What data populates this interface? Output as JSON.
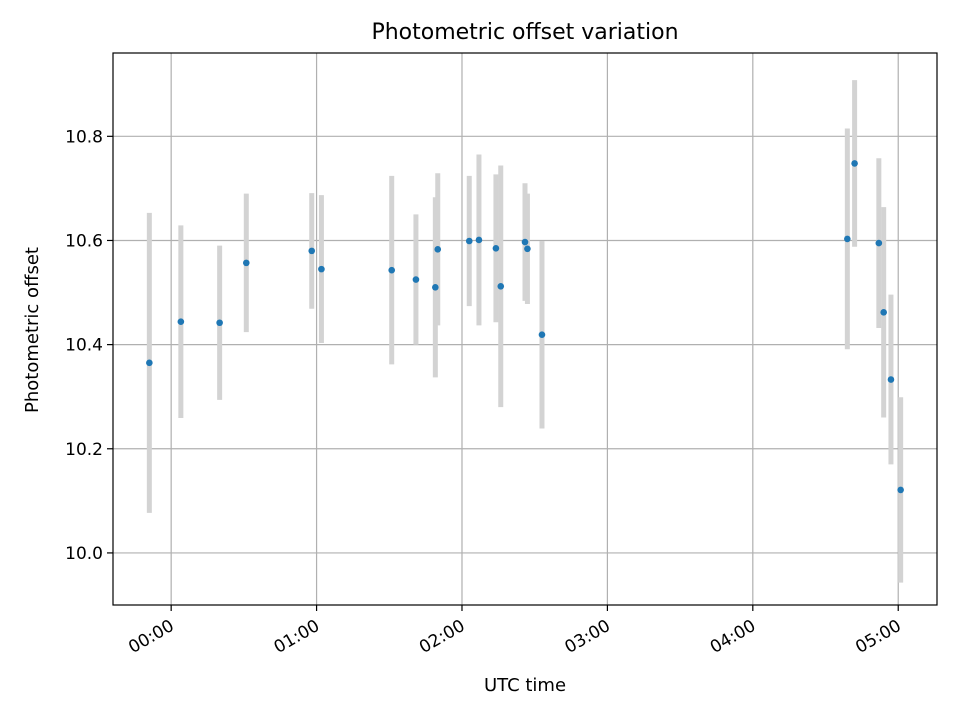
{
  "chart_data": {
    "type": "scatter",
    "title": "Photometric offset variation",
    "xlabel": "UTC time",
    "ylabel": "Photometric offset",
    "x_tick_labels": [
      "00:00",
      "01:00",
      "02:00",
      "03:00",
      "04:00",
      "05:00"
    ],
    "x_ticks_minutes": [
      0,
      60,
      120,
      180,
      240,
      300
    ],
    "y_ticks": [
      10.0,
      10.2,
      10.4,
      10.6,
      10.8
    ],
    "xlim_minutes": [
      -24,
      316
    ],
    "ylim": [
      9.9,
      10.96
    ],
    "grid": true,
    "point_color": "#1f77b4",
    "errorbar_color": "#d3d3d3",
    "points": [
      {
        "time": "23:51",
        "y": 10.365,
        "err": 0.288
      },
      {
        "time": "00:04",
        "y": 10.444,
        "err": 0.185
      },
      {
        "time": "00:20",
        "y": 10.442,
        "err": 0.148
      },
      {
        "time": "00:31",
        "y": 10.557,
        "err": 0.133
      },
      {
        "time": "00:58",
        "y": 10.58,
        "err": 0.111
      },
      {
        "time": "01:02",
        "y": 10.545,
        "err": 0.142
      },
      {
        "time": "01:31",
        "y": 10.543,
        "err": 0.181
      },
      {
        "time": "01:41",
        "y": 10.525,
        "err": 0.125
      },
      {
        "time": "01:49",
        "y": 10.51,
        "err": 0.173
      },
      {
        "time": "01:50",
        "y": 10.583,
        "err": 0.146
      },
      {
        "time": "02:03",
        "y": 10.599,
        "err": 0.125
      },
      {
        "time": "02:07",
        "y": 10.601,
        "err": 0.164
      },
      {
        "time": "02:14",
        "y": 10.585,
        "err": 0.142
      },
      {
        "time": "02:16",
        "y": 10.512,
        "err": 0.232
      },
      {
        "time": "02:26",
        "y": 10.597,
        "err": 0.113
      },
      {
        "time": "02:27",
        "y": 10.584,
        "err": 0.106
      },
      {
        "time": "02:33",
        "y": 10.419,
        "err": 0.18
      },
      {
        "time": "04:39",
        "y": 10.603,
        "err": 0.212
      },
      {
        "time": "04:42",
        "y": 10.748,
        "err": 0.16
      },
      {
        "time": "04:52",
        "y": 10.595,
        "err": 0.163
      },
      {
        "time": "04:54",
        "y": 10.462,
        "err": 0.202
      },
      {
        "time": "04:57",
        "y": 10.333,
        "err": 0.163
      },
      {
        "time": "05:01",
        "y": 10.121,
        "err": 0.178
      }
    ]
  }
}
